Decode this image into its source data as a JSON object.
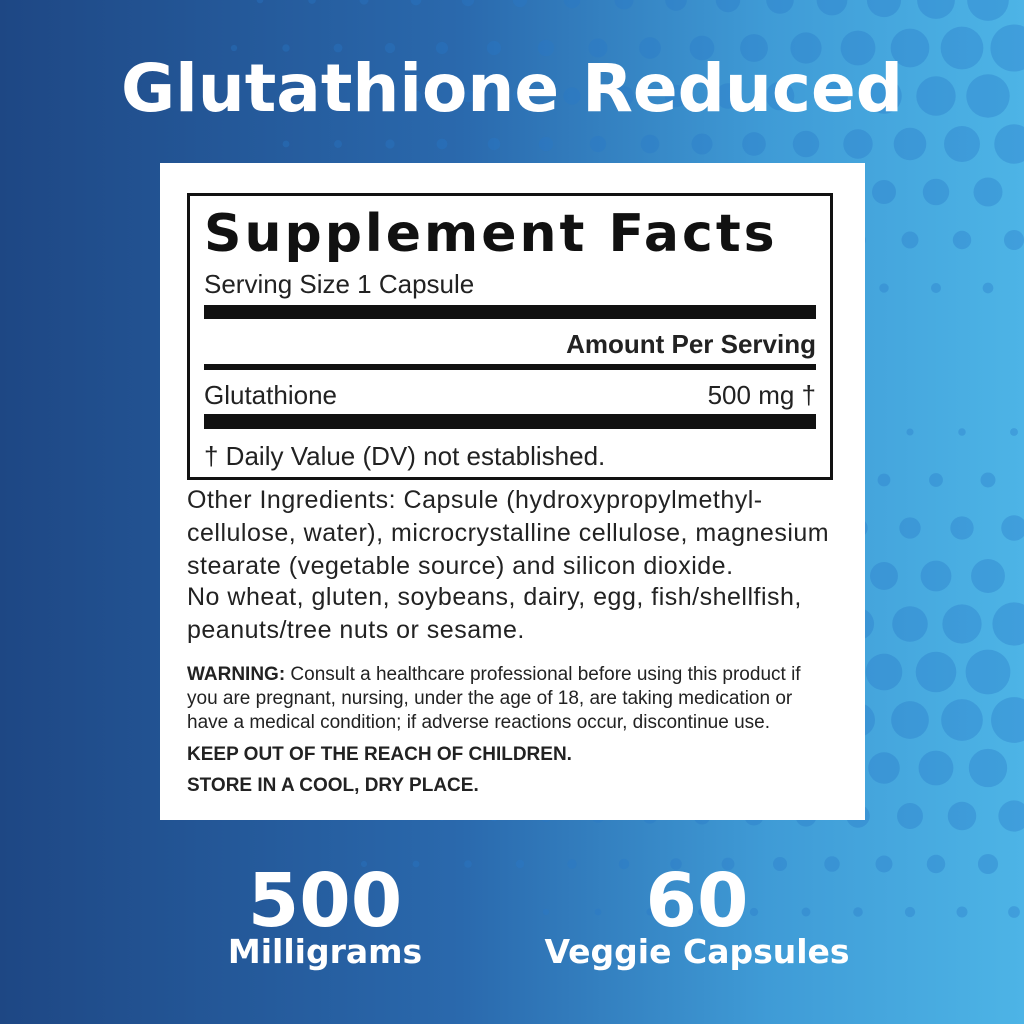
{
  "title": "Glutathione Reduced",
  "facts": {
    "heading": "Supplement Facts",
    "serving_size": "Serving Size 1 Capsule",
    "amount_header": "Amount Per Serving",
    "ingredient": "Glutathione",
    "amount": "500 mg †",
    "dv_note": "† Daily Value (DV) not established."
  },
  "other_ingredients": [
    "Other Ingredients: Capsule (hydroxypropylmethyl-",
    "cellulose, water), microcrystalline cellulose, magnesium",
    "stearate (vegetable source) and silicon dioxide."
  ],
  "allergens": [
    "No wheat, gluten, soybeans, dairy, egg, fish/shellfish,",
    "peanuts/tree nuts or sesame."
  ],
  "warning": {
    "label": "WARNING:",
    "lines": [
      " Consult a healthcare professional before using this product if",
      "you are pregnant, nursing, under the age of 18, are taking medication or",
      "have a medical condition; if adverse reactions occur, discontinue use."
    ]
  },
  "keep_out": "KEEP OUT OF THE REACH OF CHILDREN.",
  "store": "STORE IN A COOL, DRY PLACE.",
  "badges": [
    {
      "value": "500",
      "label": "Milligrams"
    },
    {
      "value": "60",
      "label": "Veggie Capsules"
    }
  ],
  "colors": {
    "bg_left": "#1e4784",
    "bg_right": "#4db4e6"
  }
}
